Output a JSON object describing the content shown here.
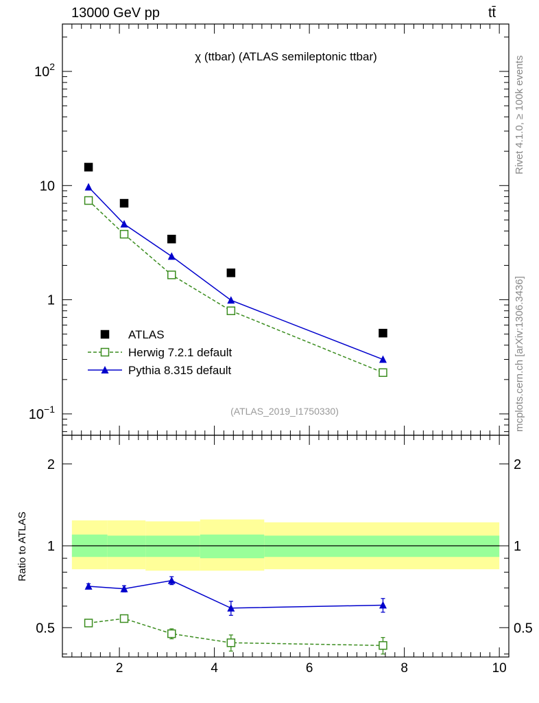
{
  "header": {
    "left": "13000 GeV pp",
    "right": "tt̄"
  },
  "side_labels": {
    "rivet": "Rivet 4.1.0, ≥ 100k events",
    "mcplots": "mcplots.cern.ch [arXiv:1306.3436]"
  },
  "chart_data": [
    {
      "panel": "main",
      "type": "scatter",
      "title": "χ (ttbar) (ATLAS semileptonic ttbar)",
      "watermark": "(ATLAS_2019_I1750330)",
      "yscale": "log",
      "xlim": [
        0.8,
        10.2
      ],
      "ylim": [
        0.065,
        260
      ],
      "y_ticks": [
        {
          "value": 0.1,
          "base": "10",
          "exp": "−1"
        },
        {
          "value": 1,
          "label": "1"
        },
        {
          "value": 10,
          "label": "10"
        },
        {
          "value": 100,
          "base": "10",
          "exp": "2"
        }
      ],
      "legend_position": "bottom-left",
      "series": [
        {
          "name": "ATLAS",
          "style": "data",
          "color": "#000000",
          "x": [
            1.35,
            2.1,
            3.1,
            4.35,
            7.55
          ],
          "y": [
            14.5,
            7.0,
            3.4,
            1.72,
            0.51
          ]
        },
        {
          "name": "Herwig 7.2.1 default",
          "style": "open-square-dashed",
          "color": "#3a8c1e",
          "x": [
            1.35,
            2.1,
            3.1,
            4.35,
            7.55
          ],
          "y": [
            7.4,
            3.75,
            1.65,
            0.8,
            0.23
          ]
        },
        {
          "name": "Pythia 8.315 default",
          "style": "triangle-solid",
          "color": "#0000cc",
          "x": [
            1.35,
            2.1,
            3.1,
            4.35,
            7.55
          ],
          "y": [
            9.7,
            4.6,
            2.4,
            0.99,
            0.3
          ]
        }
      ]
    },
    {
      "panel": "ratio",
      "type": "scatter",
      "ylabel": "Ratio to ATLAS",
      "yscale": "log",
      "xlim": [
        0.8,
        10.2
      ],
      "ylim": [
        0.39,
        2.55
      ],
      "x_ticks": [
        2,
        4,
        6,
        8,
        10
      ],
      "y_ticks": [
        0.5,
        1,
        2
      ],
      "reference": 1,
      "bands": {
        "bin_edges": [
          1.0,
          1.75,
          2.55,
          3.7,
          5.05,
          10.0
        ],
        "yellow": [
          [
            0.82,
            1.24
          ],
          [
            0.82,
            1.24
          ],
          [
            0.81,
            1.23
          ],
          [
            0.81,
            1.25
          ],
          [
            0.82,
            1.22
          ]
        ],
        "green": [
          [
            0.91,
            1.1
          ],
          [
            0.91,
            1.09
          ],
          [
            0.91,
            1.09
          ],
          [
            0.9,
            1.1
          ],
          [
            0.91,
            1.09
          ]
        ]
      },
      "series": [
        {
          "name": "Herwig 7.2.1 default",
          "color": "#3a8c1e",
          "x": [
            1.35,
            2.1,
            3.1,
            4.35,
            7.55
          ],
          "y": [
            0.52,
            0.54,
            0.475,
            0.44,
            0.43
          ],
          "err": [
            0.01,
            0.012,
            0.02,
            0.03,
            0.03
          ]
        },
        {
          "name": "Pythia 8.315 default",
          "color": "#0000cc",
          "x": [
            1.35,
            2.1,
            3.1,
            4.35,
            7.55
          ],
          "y": [
            0.71,
            0.695,
            0.745,
            0.59,
            0.605
          ],
          "err": [
            0.015,
            0.018,
            0.025,
            0.035,
            0.035
          ]
        }
      ]
    }
  ]
}
